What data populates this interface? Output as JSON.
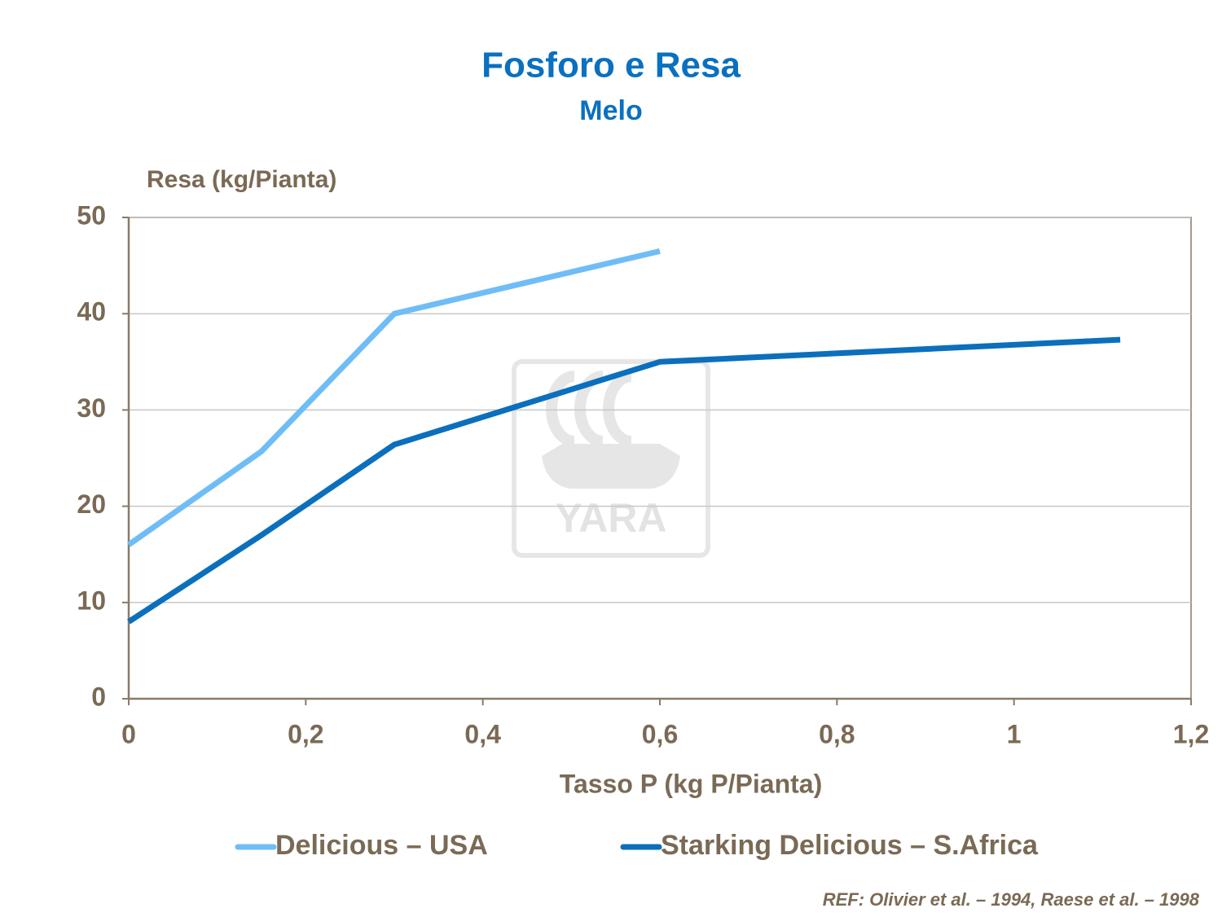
{
  "chart_data": {
    "type": "line",
    "title": "Fosforo e Resa",
    "subtitle": "Melo",
    "y_label": "Resa (kg/Pianta)",
    "x_label": "Tasso P (kg P/Pianta)",
    "footnote": "REF: Olivier et al. – 1994, Raese et al. – 1998",
    "watermark": "YARA",
    "xlim": [
      0,
      1.2
    ],
    "xticks": [
      0,
      {
        "value": 0.2,
        "label": "0,2"
      },
      {
        "value": 0.4,
        "label": "0,4"
      },
      {
        "value": 0.6,
        "label": "0,6"
      },
      {
        "value": 0.8,
        "label": "0,8"
      },
      1,
      {
        "value": 1.2,
        "label": "1,2"
      }
    ],
    "ylim": [
      0,
      50
    ],
    "yticks": [
      0,
      10,
      20,
      30,
      40,
      50
    ],
    "grid": true,
    "legend": "bottom",
    "series": [
      {
        "name": "Delicious – USA",
        "color": "#6fbdf7",
        "x": [
          0,
          0.15,
          0.3,
          0.6
        ],
        "values": [
          16,
          25.7,
          40,
          46.5
        ]
      },
      {
        "name": "Starking Delicious – S.Africa",
        "color": "#0b6fbd",
        "x": [
          0,
          0.15,
          0.3,
          0.6,
          1.12
        ],
        "values": [
          8,
          17,
          26.4,
          35,
          37.3
        ]
      }
    ]
  }
}
